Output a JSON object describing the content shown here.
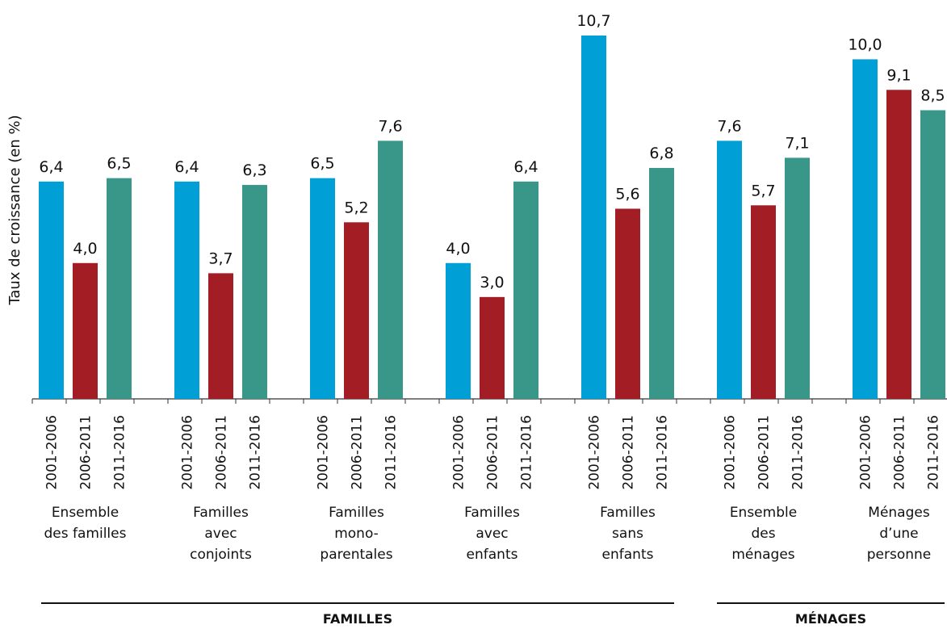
{
  "chart_data": {
    "type": "bar",
    "ylabel": "Taux de croissance (en %)",
    "xlabel": "",
    "categories": [
      [
        "Ensemble",
        "des familles"
      ],
      [
        "Familles",
        "avec",
        "conjoints"
      ],
      [
        "Familles",
        "mono-",
        "parentales"
      ],
      [
        "Familles",
        "avec",
        "enfants"
      ],
      [
        "Familles",
        "sans",
        "enfants"
      ],
      [
        "Ensemble",
        "des",
        "ménages"
      ],
      [
        "Ménages",
        "d’une",
        "personne"
      ]
    ],
    "series": [
      {
        "name": "2001-2006",
        "color": "#009fd6",
        "values": [
          6.4,
          6.4,
          6.5,
          4.0,
          10.7,
          7.6,
          10.0
        ],
        "labels": [
          "6,4",
          "6,4",
          "6,5",
          "4,0",
          "10,7",
          "7,6",
          "10,0"
        ]
      },
      {
        "name": "2006-2011",
        "color": "#a31e24",
        "values": [
          4.0,
          3.7,
          5.2,
          3.0,
          5.6,
          5.7,
          9.1
        ],
        "labels": [
          "4,0",
          "3,7",
          "5,2",
          "3,0",
          "5,6",
          "5,7",
          "9,1"
        ]
      },
      {
        "name": "2011-2016",
        "color": "#389789",
        "values": [
          6.5,
          6.3,
          7.6,
          6.4,
          6.8,
          7.1,
          8.5
        ],
        "labels": [
          "6,5",
          "6,3",
          "7,6",
          "6,4",
          "6,8",
          "7,1",
          "8,5"
        ]
      }
    ],
    "sections": [
      {
        "label": "FAMILLES",
        "groups": [
          0,
          4
        ]
      },
      {
        "label": "MÉNAGES",
        "groups": [
          5,
          6
        ]
      }
    ],
    "ylim": [
      0,
      11.5
    ],
    "grid": false,
    "legend": "none"
  }
}
